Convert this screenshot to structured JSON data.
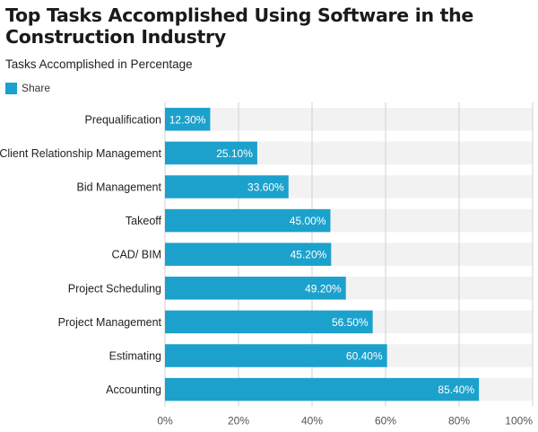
{
  "chart_data": {
    "type": "bar",
    "orientation": "horizontal",
    "title": "Top Tasks Accomplished Using Software in the Construction Industry",
    "subtitle": "Tasks Accomplished in Percentage",
    "categories": [
      "Prequalification",
      "Client Relationship Management",
      "Bid Management",
      "Takeoff",
      "CAD/ BIM",
      "Project Scheduling",
      "Project Management",
      "Estimating",
      "Accounting"
    ],
    "series": [
      {
        "name": "Share",
        "values": [
          12.3,
          25.1,
          33.6,
          45.0,
          45.2,
          49.2,
          56.5,
          60.4,
          85.4
        ],
        "labels": [
          "12.30%",
          "25.10%",
          "33.60%",
          "45.00%",
          "45.20%",
          "49.20%",
          "56.50%",
          "60.40%",
          "85.40%"
        ]
      }
    ],
    "xlim": [
      0,
      100
    ],
    "x_ticks": [
      "0%",
      "20%",
      "40%",
      "60%",
      "80%",
      "100%"
    ],
    "grid": "vertical",
    "legend_position": "top-left",
    "colors": {
      "bar": "#1ca1cc",
      "band": "#f2f2f2",
      "grid": "#d0d0d0"
    }
  }
}
